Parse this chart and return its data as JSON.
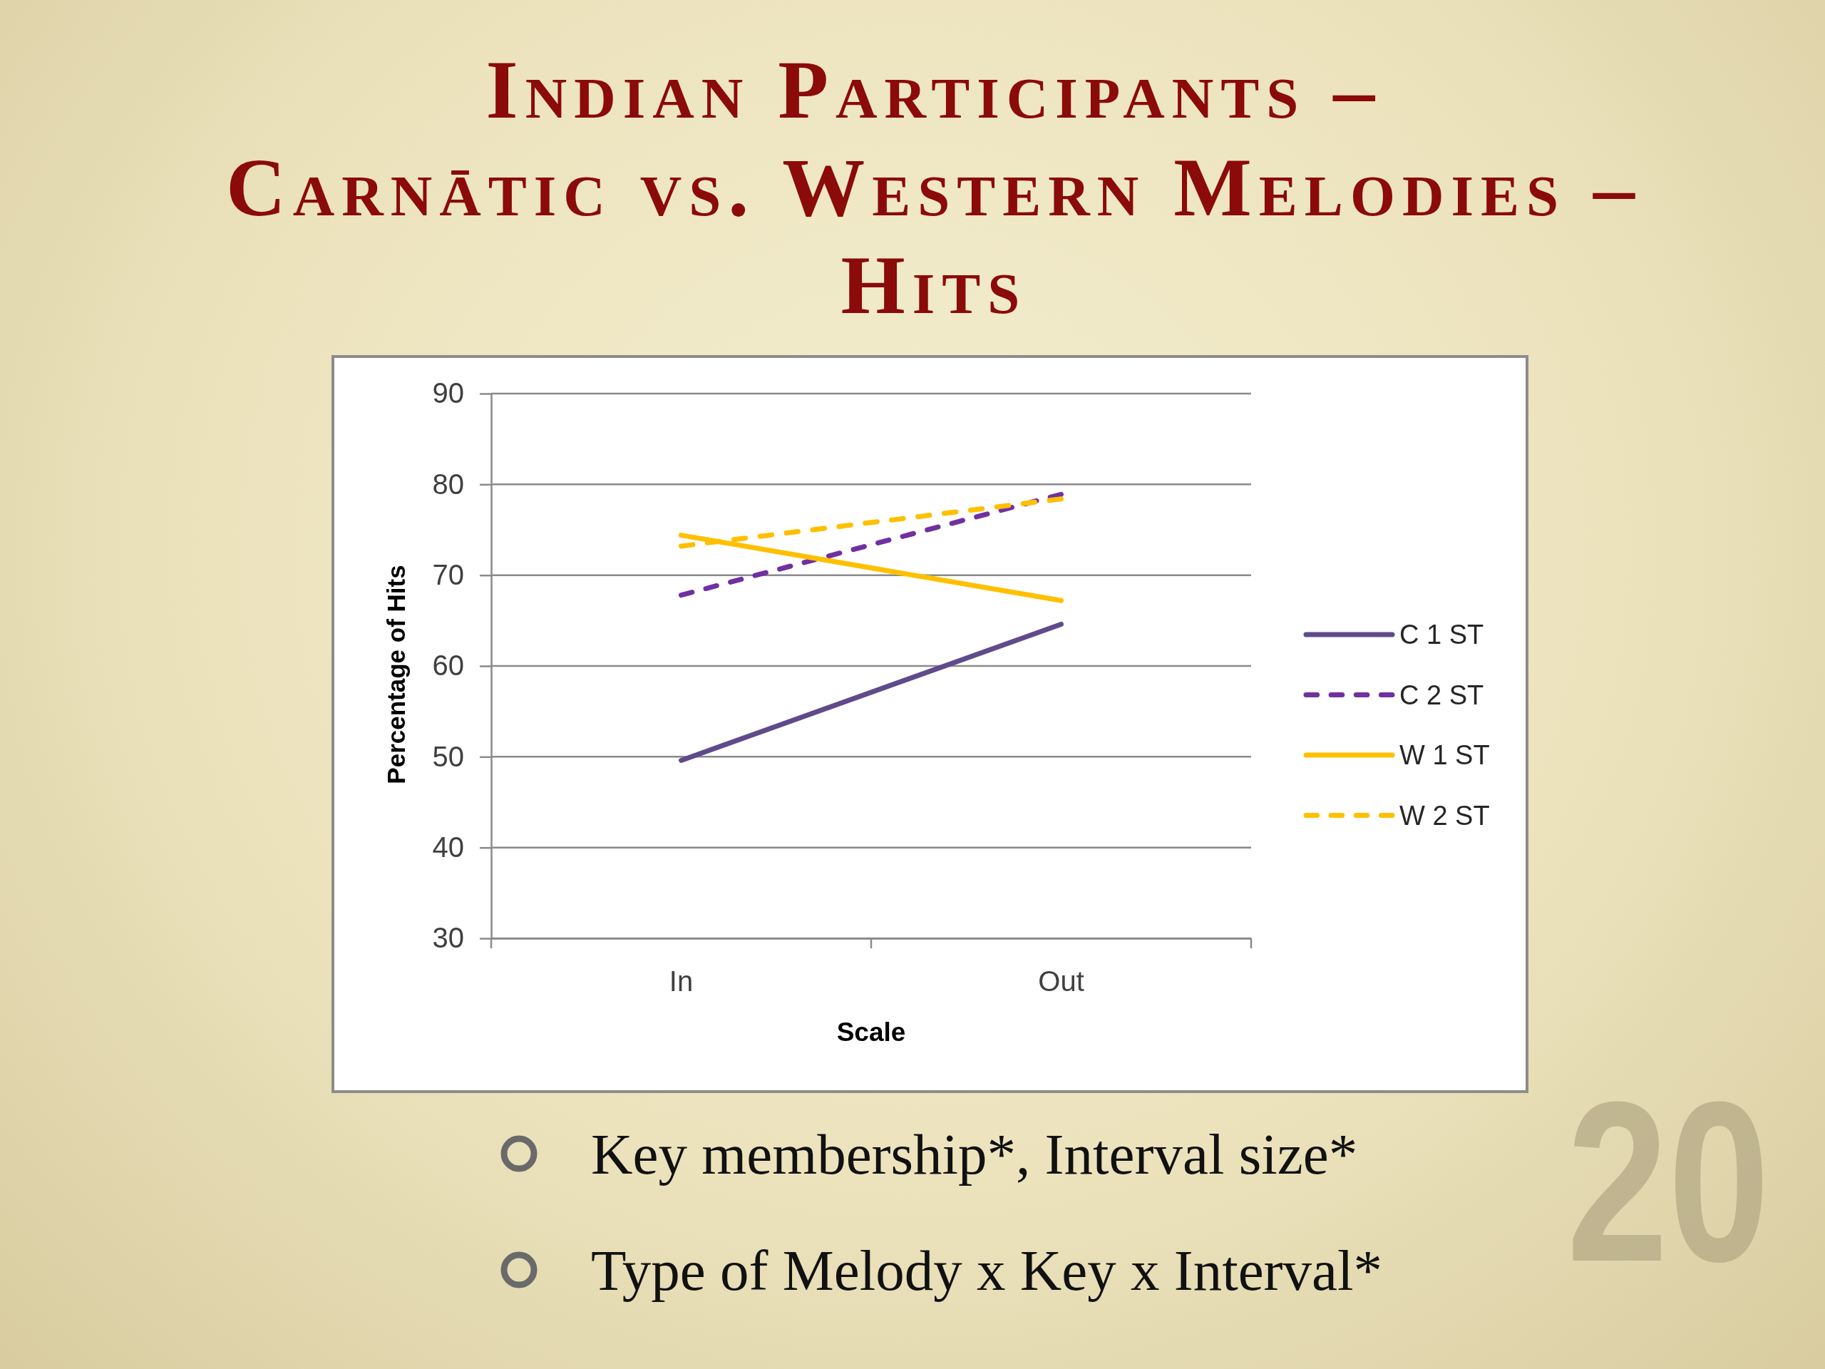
{
  "chart_data": {
    "type": "line",
    "title": "Indian Participants –\nCarnātic vs. Western Melodies –\nHits",
    "xlabel": "Scale",
    "ylabel": "Percentage of Hits",
    "categories": [
      "In",
      "Out"
    ],
    "series": [
      {
        "name": "C 1 ST",
        "color": "#5f4b8b",
        "values": [
          49.6,
          64.6
        ],
        "line_style": "solid"
      },
      {
        "name": "C 2 ST",
        "color": "#7030a0",
        "values": [
          67.8,
          78.9
        ],
        "line_style": "dashed"
      },
      {
        "name": "W 1 ST",
        "color": "#ffc000",
        "values": [
          74.4,
          67.2
        ],
        "line_style": "solid"
      },
      {
        "name": "W 2 ST",
        "color": "#ffc000",
        "values": [
          73.2,
          78.4
        ],
        "line_style": "dashed"
      }
    ],
    "ylim": [
      30,
      90
    ],
    "yticks": [
      30,
      40,
      50,
      60,
      70,
      80,
      90
    ],
    "grid": "y",
    "legend": "right",
    "annotations": [
      "Key membership*, Interval size*",
      "Type of Melody x Key x Interval*",
      "20"
    ]
  }
}
